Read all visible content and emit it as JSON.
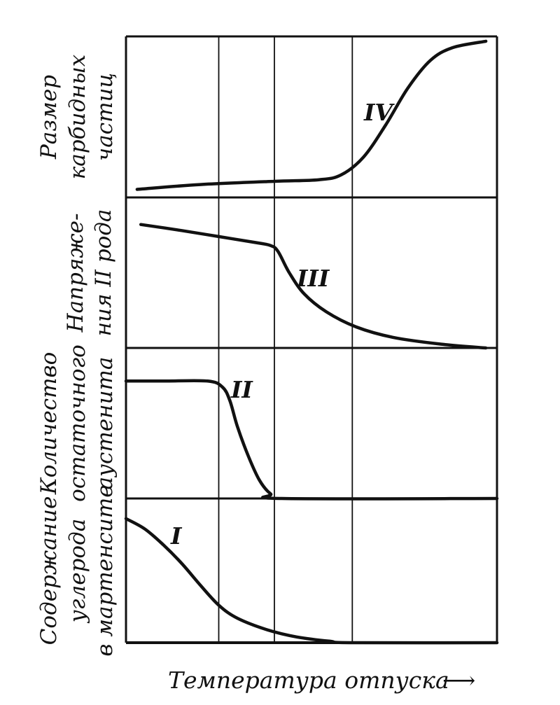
{
  "chart_data": {
    "type": "line",
    "title": "",
    "xlabel": "Температура отпуска",
    "x_arrow": "⟶",
    "x_domain": [
      0,
      100
    ],
    "vertical_gridlines": [
      25,
      40,
      61
    ],
    "grid": true,
    "legend": "none",
    "panels": [
      {
        "ylabel_lines": [
          "Размер",
          "карбидных",
          "частиц"
        ],
        "series": [
          {
            "label": "IV",
            "points": [
              [
                3,
                0.05
              ],
              [
                20,
                0.08
              ],
              [
                40,
                0.1
              ],
              [
                52,
                0.11
              ],
              [
                58,
                0.14
              ],
              [
                64,
                0.25
              ],
              [
                70,
                0.45
              ],
              [
                76,
                0.68
              ],
              [
                82,
                0.85
              ],
              [
                88,
                0.93
              ],
              [
                97,
                0.97
              ]
            ]
          }
        ]
      },
      {
        "ylabel_lines": [
          "Напряже-",
          "ния II рода"
        ],
        "series": [
          {
            "label": "III",
            "points": [
              [
                4,
                0.82
              ],
              [
                15,
                0.78
              ],
              [
                25,
                0.74
              ],
              [
                35,
                0.7
              ],
              [
                39,
                0.68
              ],
              [
                41,
                0.64
              ],
              [
                44,
                0.5
              ],
              [
                48,
                0.36
              ],
              [
                54,
                0.24
              ],
              [
                62,
                0.14
              ],
              [
                72,
                0.07
              ],
              [
                85,
                0.025
              ],
              [
                97,
                0.0
              ]
            ]
          }
        ]
      },
      {
        "ylabel_lines": [
          "Количество",
          "остаточного",
          "аустенита"
        ],
        "series": [
          {
            "label": "II",
            "points": [
              [
                0,
                0.78
              ],
              [
                10,
                0.78
              ],
              [
                22,
                0.78
              ],
              [
                26,
                0.74
              ],
              [
                28,
                0.65
              ],
              [
                30,
                0.48
              ],
              [
                33,
                0.28
              ],
              [
                36,
                0.12
              ],
              [
                39,
                0.03
              ],
              [
                42,
                0.0
              ],
              [
                100,
                0.0
              ]
            ]
          }
        ]
      },
      {
        "ylabel_lines": [
          "Содержание",
          "углерода",
          "в мартенсите"
        ],
        "series": [
          {
            "label": "I",
            "points": [
              [
                0,
                0.86
              ],
              [
                5,
                0.79
              ],
              [
                10,
                0.68
              ],
              [
                15,
                0.55
              ],
              [
                20,
                0.4
              ],
              [
                25,
                0.26
              ],
              [
                30,
                0.17
              ],
              [
                38,
                0.09
              ],
              [
                46,
                0.04
              ],
              [
                55,
                0.01
              ],
              [
                61,
                0.0
              ],
              [
                100,
                0.0
              ]
            ]
          }
        ]
      }
    ]
  }
}
